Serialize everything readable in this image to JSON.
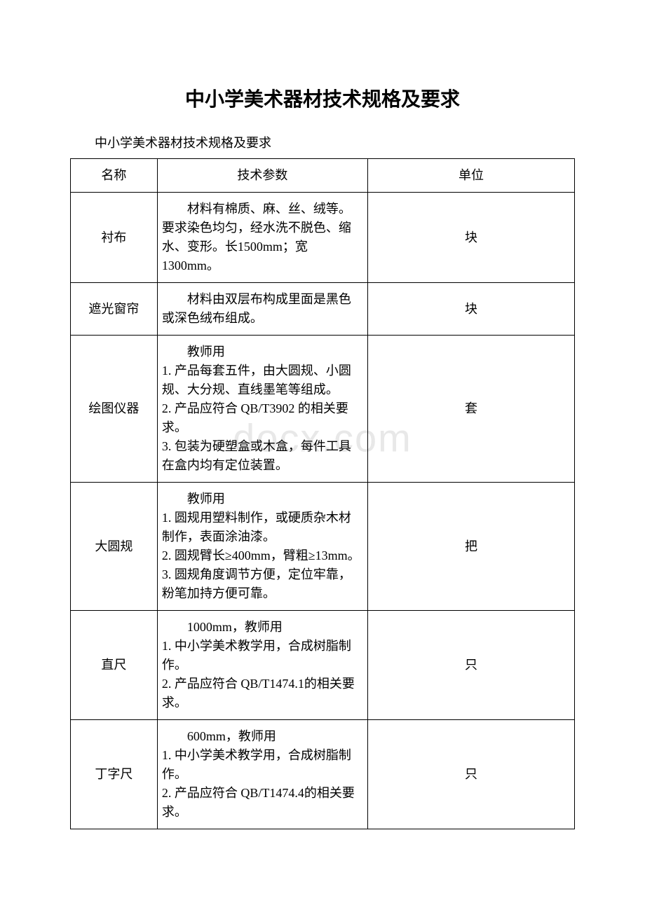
{
  "watermark": "docx.com",
  "main_title": "中小学美术器材技术规格及要求",
  "subtitle": "中小学美术器材技术规格及要求",
  "headers": {
    "name": "名称",
    "spec": "技术参数",
    "unit": "单位"
  },
  "rows": [
    {
      "name": "衬布",
      "spec_first": "材料有棉质、麻、丝、绒等。要求染色均匀，经水洗不脱色、缩水、变形。长1500mm；宽 1300mm。",
      "unit": "块"
    },
    {
      "name": "遮光窗帘",
      "spec_first": "材料由双层布构成里面是黑色或深色绒布组成。",
      "unit": "块"
    },
    {
      "name": "绘图仪器",
      "spec_first": "教师用",
      "spec_lines": [
        "1. 产品每套五件，由大圆规、小圆规、大分规、直线墨笔等组成。",
        "2. 产品应符合 QB/T3902 的相关要求。",
        "3. 包装为硬塑盒或木盒，每件工具在盒内均有定位装置。"
      ],
      "unit": "套"
    },
    {
      "name": "大圆规",
      "spec_first": "教师用",
      "spec_lines": [
        "1. 圆规用塑料制作，或硬质杂木材制作，表面涂油漆。",
        "2. 圆规臂长≥400mm，臂粗≥13mm。",
        "3. 圆规角度调节方便，定位牢靠，粉笔加持方便可靠。"
      ],
      "unit": "把"
    },
    {
      "name": "直尺",
      "spec_first": "1000mm，教师用",
      "spec_lines": [
        "1. 中小学美术教学用，合成树脂制作。",
        "2. 产品应符合 QB/T1474.1的相关要求。"
      ],
      "unit": "只"
    },
    {
      "name": "丁字尺",
      "spec_first": "600mm，教师用",
      "spec_lines": [
        "1. 中小学美术教学用，合成树脂制作。",
        "2. 产品应符合 QB/T1474.4的相关要求。"
      ],
      "unit": "只"
    }
  ]
}
